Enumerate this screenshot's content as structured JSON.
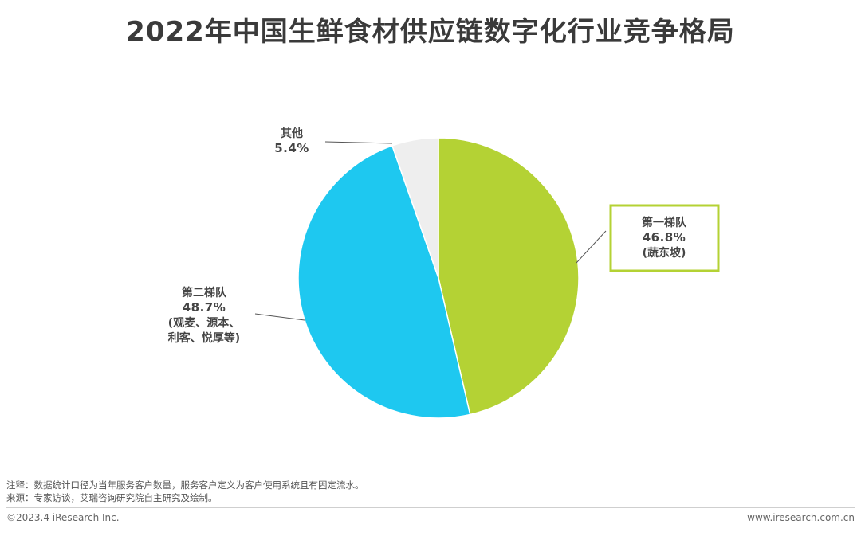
{
  "title": "2022年中国生鲜食材供应链数字化行业竞争格局",
  "chart_data": {
    "type": "pie",
    "title": "2022年中国生鲜食材供应链数字化行业竞争格局",
    "slices": [
      {
        "name": "第一梯队",
        "value": 46.8,
        "value_label": "46.8%",
        "detail": [
          "(蔬东坡)"
        ],
        "color": "#b4d234",
        "boxed": true
      },
      {
        "name": "第二梯队",
        "value": 48.7,
        "value_label": "48.7%",
        "detail": [
          "(观麦、源本、",
          "利客、悦厚等)"
        ],
        "color": "#1ec8f0",
        "boxed": false
      },
      {
        "name": "其他",
        "value": 5.4,
        "value_label": "5.4%",
        "detail": [],
        "color": "#eeeeee",
        "boxed": false
      }
    ],
    "start": "12 o'clock",
    "direction": "clockwise"
  },
  "notes": {
    "note": "注释：数据统计口径为当年服务客户数量，服务客户定义为客户使用系统且有固定流水。",
    "source": "来源：专家访谈，艾瑞咨询研究院自主研究及绘制。"
  },
  "footer": {
    "copyright": "©2023.4 iResearch Inc.",
    "website": "www.iresearch.com.cn"
  }
}
